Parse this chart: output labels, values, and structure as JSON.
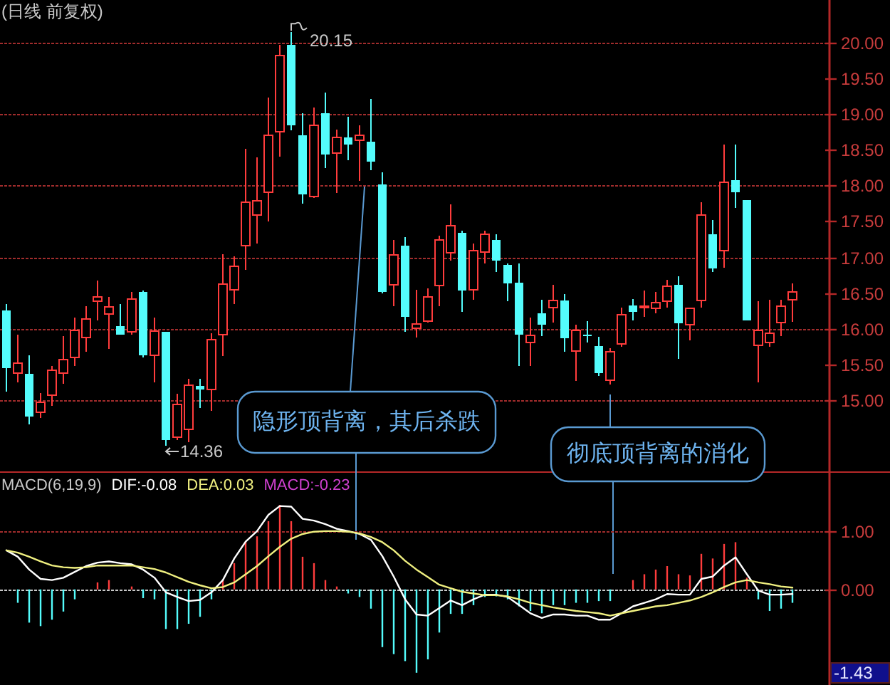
{
  "chart_data": [
    {
      "type": "candlestick",
      "title": "(日线 前复权)",
      "categories": [
        null,
        null,
        null,
        null,
        null,
        null,
        null,
        null,
        null,
        null,
        null,
        null,
        null,
        null,
        null,
        null,
        null,
        null,
        null,
        null,
        null,
        null,
        null,
        null,
        null,
        null,
        null,
        null,
        null,
        null,
        null,
        null,
        null,
        null,
        null,
        null,
        null,
        null,
        null,
        null,
        null,
        null,
        null,
        null,
        null,
        null,
        null,
        null,
        null,
        null,
        null,
        null,
        null,
        null,
        null,
        null,
        null,
        null,
        null,
        null,
        null,
        null,
        null,
        null,
        null,
        null,
        null,
        null,
        null,
        null
      ],
      "ohlc": [
        [
          16.25,
          16.34,
          15.12,
          15.45
        ],
        [
          15.38,
          15.91,
          15.25,
          15.52
        ],
        [
          15.37,
          15.63,
          14.66,
          14.77
        ],
        [
          14.83,
          15.1,
          14.75,
          14.97
        ],
        [
          15.07,
          15.48,
          14.92,
          15.42
        ],
        [
          15.38,
          15.89,
          15.23,
          15.57
        ],
        [
          15.6,
          16.15,
          15.48,
          15.97
        ],
        [
          15.87,
          16.31,
          15.67,
          16.13
        ],
        [
          16.38,
          16.67,
          16.11,
          16.44
        ],
        [
          16.2,
          16.44,
          15.71,
          16.3
        ],
        [
          16.03,
          16.34,
          15.91,
          15.91
        ],
        [
          15.95,
          16.51,
          15.91,
          16.41
        ],
        [
          16.51,
          16.53,
          15.6,
          15.63
        ],
        [
          15.63,
          16.15,
          15.25,
          15.96
        ],
        [
          15.95,
          15.95,
          14.36,
          14.44
        ],
        [
          14.48,
          15.09,
          14.44,
          14.94
        ],
        [
          14.59,
          15.3,
          14.41,
          15.21
        ],
        [
          15.2,
          15.3,
          14.89,
          15.15
        ],
        [
          15.15,
          15.93,
          14.85,
          15.84
        ],
        [
          15.91,
          17.04,
          15.62,
          16.62
        ],
        [
          16.54,
          17.01,
          16.34,
          16.87
        ],
        [
          17.16,
          18.52,
          16.82,
          17.77
        ],
        [
          17.59,
          18.4,
          17.19,
          17.79
        ],
        [
          17.91,
          19.23,
          17.5,
          18.71
        ],
        [
          18.76,
          19.97,
          18.41,
          19.82
        ],
        [
          19.97,
          20.15,
          18.78,
          18.85
        ],
        [
          18.71,
          19.01,
          17.75,
          17.88
        ],
        [
          17.85,
          19.09,
          17.83,
          18.85
        ],
        [
          19.01,
          19.3,
          18.25,
          18.44
        ],
        [
          18.46,
          18.79,
          17.9,
          18.68
        ],
        [
          18.68,
          18.96,
          18.36,
          18.58
        ],
        [
          18.64,
          18.85,
          18.07,
          18.71
        ],
        [
          18.62,
          19.21,
          18.22,
          18.34
        ],
        [
          18.02,
          18.19,
          16.49,
          16.51
        ],
        [
          16.61,
          17.24,
          16.31,
          17.03
        ],
        [
          17.16,
          17.28,
          15.95,
          16.16
        ],
        [
          16.0,
          16.54,
          15.87,
          16.06
        ],
        [
          16.1,
          16.56,
          16.08,
          16.44
        ],
        [
          16.6,
          17.3,
          16.31,
          17.24
        ],
        [
          17.06,
          17.74,
          16.95,
          17.44
        ],
        [
          17.34,
          17.37,
          16.23,
          16.53
        ],
        [
          16.54,
          17.19,
          16.4,
          17.09
        ],
        [
          17.07,
          17.37,
          16.91,
          17.32
        ],
        [
          17.24,
          17.32,
          16.79,
          16.95
        ],
        [
          16.89,
          16.91,
          16.38,
          16.63
        ],
        [
          16.64,
          16.91,
          15.48,
          15.91
        ],
        [
          15.8,
          16.15,
          15.48,
          15.9
        ],
        [
          16.21,
          16.4,
          15.89,
          16.05
        ],
        [
          16.29,
          16.61,
          16.08,
          16.39
        ],
        [
          16.39,
          16.48,
          15.67,
          15.86
        ],
        [
          15.68,
          16.05,
          15.27,
          15.97
        ],
        [
          15.91,
          16.1,
          15.8,
          15.89
        ],
        [
          15.75,
          15.88,
          15.34,
          15.38
        ],
        [
          15.28,
          15.72,
          15.22,
          15.67
        ],
        [
          15.78,
          16.29,
          15.74,
          16.19
        ],
        [
          16.32,
          16.41,
          16.11,
          16.23
        ],
        [
          16.29,
          16.53,
          16.16,
          16.31
        ],
        [
          16.28,
          16.51,
          16.21,
          16.36
        ],
        [
          16.38,
          16.68,
          16.29,
          16.59
        ],
        [
          16.61,
          16.73,
          15.58,
          16.07
        ],
        [
          16.05,
          16.29,
          15.83,
          16.28
        ],
        [
          16.39,
          17.77,
          16.29,
          17.59
        ],
        [
          17.32,
          17.52,
          16.79,
          16.84
        ],
        [
          17.09,
          18.58,
          16.85,
          18.05
        ],
        [
          18.08,
          18.58,
          17.69,
          17.91
        ],
        [
          17.8,
          17.8,
          16.11,
          16.11
        ],
        [
          15.76,
          16.38,
          15.25,
          15.97
        ],
        [
          15.8,
          16.4,
          15.74,
          15.93
        ],
        [
          16.08,
          16.4,
          15.89,
          16.31
        ],
        [
          16.4,
          16.63,
          16.09,
          16.51
        ]
      ],
      "colors": [
        "#54fcfc",
        "#ff3c3c",
        "#54fcfc",
        "#ff3c3c",
        "#ff3c3c",
        "#ff3c3c",
        "#ff3c3c",
        "#ff3c3c",
        "#ff3c3c",
        "#ff3c3c",
        "#54fcfc",
        "#ff3c3c",
        "#54fcfc",
        "#ff3c3c",
        "#54fcfc",
        "#ff3c3c",
        "#ff3c3c",
        "#54fcfc",
        "#ff3c3c",
        "#ff3c3c",
        "#ff3c3c",
        "#ff3c3c",
        "#ff3c3c",
        "#ff3c3c",
        "#ff3c3c",
        "#54fcfc",
        "#54fcfc",
        "#ff3c3c",
        "#54fcfc",
        "#ff3c3c",
        "#54fcfc",
        "#ff3c3c",
        "#54fcfc",
        "#54fcfc",
        "#ff3c3c",
        "#54fcfc",
        "#ff3c3c",
        "#ff3c3c",
        "#ff3c3c",
        "#ff3c3c",
        "#54fcfc",
        "#ff3c3c",
        "#ff3c3c",
        "#54fcfc",
        "#54fcfc",
        "#54fcfc",
        "#ff3c3c",
        "#54fcfc",
        "#ff3c3c",
        "#54fcfc",
        "#ff3c3c",
        "#54fcfc",
        "#54fcfc",
        "#ff3c3c",
        "#ff3c3c",
        "#54fcfc",
        "#ff3c3c",
        "#ff3c3c",
        "#ff3c3c",
        "#54fcfc",
        "#ff3c3c",
        "#ff3c3c",
        "#54fcfc",
        "#ff3c3c",
        "#54fcfc",
        "#54fcfc",
        "#ff3c3c",
        "#ff3c3c",
        "#ff3c3c",
        "#ff3c3c"
      ],
      "ylim": [
        14.0,
        20.6
      ],
      "yticks": [
        {
          "value": 15,
          "label": "15.00"
        },
        {
          "value": 15.5,
          "label": "15.50"
        },
        {
          "value": 16,
          "label": "16.00"
        },
        {
          "value": 16.5,
          "label": "16.50"
        },
        {
          "value": 17,
          "label": "17.00"
        },
        {
          "value": 17.5,
          "label": "17.50"
        },
        {
          "value": 18,
          "label": "18.00"
        },
        {
          "value": 18.5,
          "label": "18.50"
        },
        {
          "value": 19,
          "label": "19.00"
        },
        {
          "value": 19.5,
          "label": "19.50"
        },
        {
          "value": 20,
          "label": "20.00"
        }
      ],
      "grid": "y",
      "tick_labels": "y",
      "annotations": [
        "20.15",
        "14.36",
        "隐形顶背离，其后杀跌",
        "彻底顶背离的消化"
      ]
    },
    {
      "type": "bar",
      "title": "MACD(6,19,9)",
      "categories": [
        null,
        null,
        null,
        null,
        null,
        null,
        null,
        null,
        null,
        null,
        null,
        null,
        null,
        null,
        null,
        null,
        null,
        null,
        null,
        null,
        null,
        null,
        null,
        null,
        null,
        null,
        null,
        null,
        null,
        null,
        null,
        null,
        null,
        null,
        null,
        null,
        null,
        null,
        null,
        null,
        null,
        null,
        null,
        null,
        null,
        null,
        null,
        null,
        null,
        null,
        null,
        null,
        null,
        null,
        null,
        null,
        null,
        null,
        null,
        null,
        null,
        null,
        null,
        null,
        null,
        null,
        null,
        null,
        null,
        null
      ],
      "series": [
        {
          "name": "DIF:-0.08",
          "type": "line",
          "color": "#ffffff",
          "values": [
            0.67,
            0.56,
            0.34,
            0.18,
            0.16,
            0.2,
            0.3,
            0.4,
            0.46,
            0.48,
            0.45,
            0.43,
            0.34,
            0.2,
            -0.05,
            -0.13,
            -0.2,
            -0.18,
            -0.05,
            0.16,
            0.53,
            0.82,
            1.0,
            1.28,
            1.43,
            1.42,
            1.21,
            1.18,
            1.12,
            1.04,
            1.0,
            0.95,
            0.85,
            0.57,
            0.22,
            -0.17,
            -0.43,
            -0.45,
            -0.32,
            -0.19,
            -0.27,
            -0.17,
            -0.09,
            -0.09,
            -0.13,
            -0.27,
            -0.41,
            -0.49,
            -0.43,
            -0.43,
            -0.45,
            -0.45,
            -0.52,
            -0.52,
            -0.41,
            -0.29,
            -0.23,
            -0.17,
            -0.08,
            -0.09,
            -0.09,
            0.18,
            0.22,
            0.41,
            0.55,
            0.26,
            -0.02,
            -0.09,
            -0.09,
            -0.08
          ]
        },
        {
          "name": "DEA:0.03",
          "type": "line",
          "color": "#f0f080",
          "values": [
            0.67,
            0.63,
            0.56,
            0.48,
            0.41,
            0.38,
            0.37,
            0.38,
            0.41,
            0.41,
            0.41,
            0.41,
            0.38,
            0.35,
            0.29,
            0.21,
            0.13,
            0.07,
            0.02,
            0.04,
            0.12,
            0.26,
            0.4,
            0.57,
            0.73,
            0.87,
            0.95,
            0.99,
            1.0,
            1.0,
            0.99,
            0.96,
            0.9,
            0.81,
            0.67,
            0.49,
            0.34,
            0.21,
            0.08,
            0.02,
            -0.04,
            -0.07,
            -0.1,
            -0.1,
            -0.12,
            -0.17,
            -0.23,
            -0.27,
            -0.31,
            -0.34,
            -0.37,
            -0.39,
            -0.41,
            -0.45,
            -0.41,
            -0.37,
            -0.33,
            -0.29,
            -0.27,
            -0.23,
            -0.19,
            -0.13,
            -0.05,
            0.04,
            0.12,
            0.16,
            0.12,
            0.09,
            0.05,
            0.03
          ]
        },
        {
          "name": "MACD:-0.23",
          "type": "bar",
          "values": [
            null,
            -0.23,
            -0.57,
            -0.63,
            -0.52,
            -0.38,
            -0.17,
            null,
            0.12,
            0.16,
            null,
            0.05,
            -0.15,
            -0.17,
            -0.68,
            -0.68,
            -0.59,
            -0.47,
            -0.17,
            0.16,
            0.45,
            0.82,
            0.91,
            1.17,
            1.45,
            1.17,
            0.56,
            0.45,
            0.16,
            0.05,
            -0.07,
            -0.13,
            -0.33,
            -0.99,
            -1.11,
            -1.23,
            -1.43,
            -1.2,
            -0.74,
            -0.42,
            -0.42,
            -0.27,
            -0.13,
            -0.12,
            -0.17,
            -0.29,
            -0.37,
            -0.41,
            -0.27,
            -0.27,
            -0.23,
            -0.23,
            -0.2,
            -0.2,
            null,
            0.16,
            0.26,
            0.34,
            0.4,
            0.26,
            0.24,
            0.61,
            0.53,
            0.78,
            0.81,
            0.2,
            -0.17,
            -0.37,
            -0.33,
            -0.23
          ],
          "colors": [
            null,
            "#54fcfc",
            "#54fcfc",
            "#54fcfc",
            "#54fcfc",
            "#54fcfc",
            "#54fcfc",
            null,
            "#ff3c3c",
            "#ff3c3c",
            null,
            "#ff3c3c",
            "#54fcfc",
            "#54fcfc",
            "#54fcfc",
            "#54fcfc",
            "#54fcfc",
            "#54fcfc",
            "#54fcfc",
            "#ff3c3c",
            "#ff3c3c",
            "#ff3c3c",
            "#ff3c3c",
            "#ff3c3c",
            "#ff3c3c",
            "#ff3c3c",
            "#ff3c3c",
            "#ff3c3c",
            "#ff3c3c",
            "#ff3c3c",
            "#54fcfc",
            "#54fcfc",
            "#54fcfc",
            "#54fcfc",
            "#54fcfc",
            "#54fcfc",
            "#54fcfc",
            "#54fcfc",
            "#54fcfc",
            "#54fcfc",
            "#54fcfc",
            "#54fcfc",
            "#54fcfc",
            "#54fcfc",
            "#54fcfc",
            "#54fcfc",
            "#54fcfc",
            "#54fcfc",
            "#54fcfc",
            "#54fcfc",
            "#54fcfc",
            "#54fcfc",
            "#54fcfc",
            "#54fcfc",
            null,
            "#ff3c3c",
            "#ff3c3c",
            "#ff3c3c",
            "#ff3c3c",
            "#ff3c3c",
            "#ff3c3c",
            "#ff3c3c",
            "#ff3c3c",
            "#ff3c3c",
            "#ff3c3c",
            "#ff3c3c",
            "#54fcfc",
            "#54fcfc",
            "#54fcfc",
            "#54fcfc"
          ]
        }
      ],
      "ylim": [
        -1.64,
        2.0
      ],
      "yticks": [
        {
          "value": -1.43,
          "label": "-1.43"
        },
        {
          "value": 0,
          "label": "0.00"
        },
        {
          "value": 1,
          "label": "1.00"
        }
      ],
      "tick_labels": "y",
      "legend": "top left",
      "ref_lines": [
        {
          "axis": "y",
          "value": 0,
          "color": "#c8c8c8",
          "line_style": "dotted"
        },
        {
          "axis": "y",
          "value": 1,
          "color": "#a02c2c",
          "line_style": "dotted"
        }
      ]
    }
  ]
}
